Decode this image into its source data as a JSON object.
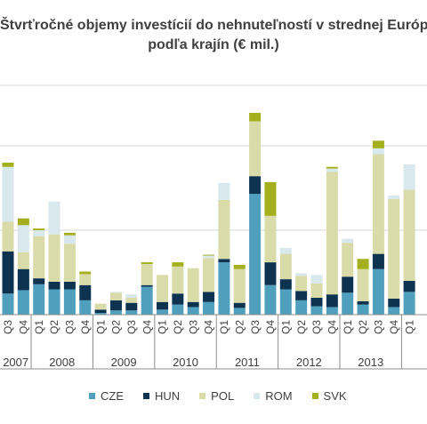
{
  "chart_data": {
    "type": "bar",
    "stacked": true,
    "title_line1": "Štvrťročné objemy investícií do nehnuteľností v strednej Európe",
    "title_line2": "podľa krajín (€ mil.)",
    "quarter_labels": [
      "Q3",
      "Q4",
      "Q1",
      "Q2",
      "Q3",
      "Q4",
      "Q1",
      "Q2",
      "Q3",
      "Q4",
      "Q1",
      "Q2",
      "Q3",
      "Q4",
      "Q1",
      "Q2",
      "Q3",
      "Q4",
      "Q1",
      "Q2",
      "Q3",
      "Q4",
      "Q1",
      "Q2",
      "Q3",
      "Q4",
      "Q1"
    ],
    "year_labels": [
      "2007",
      "2008",
      "2009",
      "2010",
      "2011",
      "2012",
      "2013"
    ],
    "series": [
      {
        "name": "CZE",
        "color": "#4f9fbd",
        "values": [
          250,
          290,
          360,
          300,
          300,
          170,
          20,
          50,
          50,
          330,
          60,
          120,
          90,
          150,
          620,
          80,
          1430,
          350,
          300,
          170,
          100,
          90,
          260,
          120,
          540,
          90,
          270
        ]
      },
      {
        "name": "HUN",
        "color": "#0d3350",
        "values": [
          500,
          250,
          70,
          90,
          90,
          180,
          40,
          120,
          90,
          20,
          90,
          130,
          60,
          120,
          40,
          60,
          210,
          270,
          120,
          110,
          100,
          150,
          190,
          40,
          180,
          100,
          130
        ]
      },
      {
        "name": "POL",
        "color": "#d9dba8",
        "values": [
          350,
          200,
          500,
          560,
          450,
          130,
          70,
          90,
          60,
          250,
          320,
          320,
          400,
          400,
          700,
          400,
          650,
          550,
          300,
          180,
          170,
          1450,
          400,
          380,
          1180,
          1180,
          1080
        ]
      },
      {
        "name": "ROM",
        "color": "#d8e8ec",
        "values": [
          650,
          320,
          70,
          390,
          100,
          0,
          0,
          10,
          40,
          0,
          0,
          0,
          0,
          30,
          200,
          0,
          0,
          0,
          70,
          30,
          100,
          40,
          50,
          0,
          70,
          40,
          300
        ]
      },
      {
        "name": "SVK",
        "color": "#a3af1d",
        "values": [
          50,
          80,
          20,
          0,
          30,
          30,
          0,
          0,
          0,
          20,
          0,
          50,
          0,
          10,
          0,
          50,
          100,
          400,
          0,
          0,
          0,
          20,
          0,
          120,
          90,
          0,
          0
        ]
      }
    ]
  },
  "legend": {
    "items": [
      {
        "name": "CZE",
        "color": "#4f9fbd"
      },
      {
        "name": "HUN",
        "color": "#0d3350"
      },
      {
        "name": "POL",
        "color": "#d9dba8"
      },
      {
        "name": "ROM",
        "color": "#d8e8ec"
      },
      {
        "name": "SVK",
        "color": "#a3af1d"
      }
    ]
  }
}
